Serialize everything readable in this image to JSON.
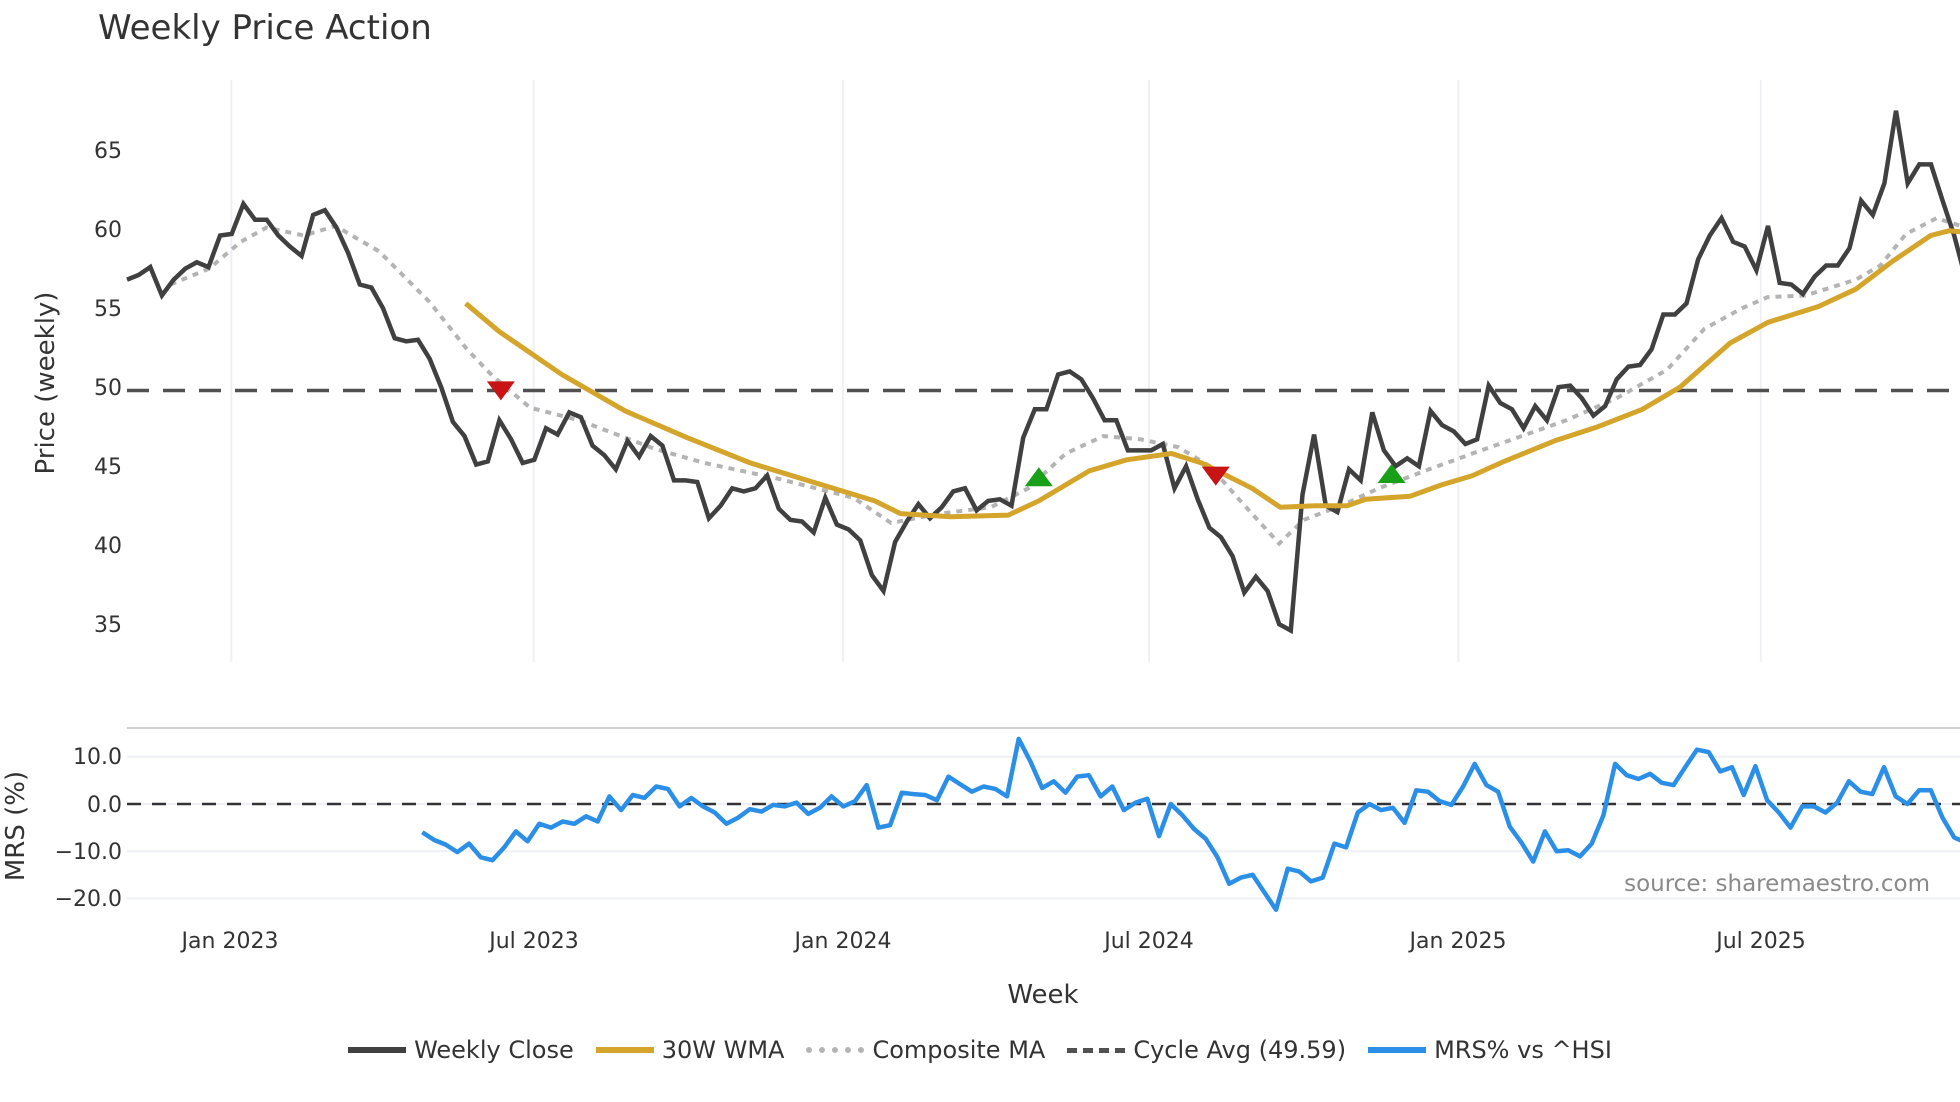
{
  "chart_data": [
    {
      "type": "line",
      "title": "Weekly Price Action",
      "xlabel": "Week",
      "ylabel": "Price (weekly)",
      "ylim": [
        32.5,
        69.2
      ],
      "yticks": [
        35,
        40,
        45,
        50,
        55,
        60,
        65
      ],
      "xticks": [
        {
          "label": "Jan 2023",
          "week_index": 8.9
        },
        {
          "label": "Jul 2023",
          "week_index": 34.7
        },
        {
          "label": "Jan 2024",
          "week_index": 61.1
        },
        {
          "label": "Jul 2024",
          "week_index": 87.2
        },
        {
          "label": "Jan 2025",
          "week_index": 113.6
        },
        {
          "label": "Jul 2025",
          "week_index": 139.4
        }
      ],
      "x_range_weeks": [
        0,
        156.4
      ],
      "grid": true,
      "series": [
        {
          "name": "Weekly Close",
          "color": "#404040",
          "start_index": 0,
          "end_index": 156.9,
          "values": [
            56.6,
            56.9,
            57.4,
            55.6,
            56.6,
            57.3,
            57.7,
            57.4,
            59.4,
            59.5,
            61.4,
            60.4,
            60.4,
            59.4,
            58.7,
            58.1,
            60.7,
            61.0,
            59.9,
            58.3,
            56.3,
            56.1,
            54.8,
            52.9,
            52.7,
            52.8,
            51.6,
            49.8,
            47.6,
            46.7,
            44.9,
            45.1,
            47.7,
            46.5,
            45.0,
            45.2,
            47.2,
            46.8,
            48.2,
            47.9,
            46.1,
            45.5,
            44.6,
            46.4,
            45.4,
            46.7,
            46.1,
            43.9,
            43.9,
            43.8,
            41.5,
            42.3,
            43.4,
            43.2,
            43.4,
            44.2,
            42.1,
            41.4,
            41.3,
            40.6,
            42.8,
            41.1,
            40.8,
            40.1,
            37.9,
            36.9,
            40.0,
            41.3,
            42.4,
            41.5,
            42.2,
            43.2,
            43.4,
            42.0,
            42.6,
            42.7,
            42.3,
            46.6,
            48.4,
            48.4,
            50.6,
            50.8,
            50.3,
            49.1,
            47.7,
            47.7,
            45.8,
            45.8,
            45.8,
            46.2,
            43.4,
            44.8,
            42.7,
            40.9,
            40.3,
            39.1,
            36.8,
            37.8,
            36.9,
            34.8,
            34.4,
            43.0,
            46.8,
            42.3,
            41.9,
            44.6,
            43.9,
            48.2,
            45.8,
            44.8,
            45.3,
            44.8,
            48.3,
            47.4,
            47.0,
            46.2,
            46.5,
            49.9,
            48.8,
            48.4,
            47.2,
            48.6,
            47.7,
            49.8,
            49.9,
            49.1,
            48.0,
            48.6,
            50.3,
            51.1,
            51.2,
            52.2,
            54.4,
            54.4,
            55.1,
            57.9,
            59.4,
            60.5,
            59.0,
            58.7,
            57.2,
            60.0,
            56.4,
            56.3,
            55.7,
            56.8,
            57.5,
            57.5,
            58.6,
            61.6,
            60.7,
            62.7,
            67.3,
            62.7,
            63.9,
            63.9,
            61.6,
            59.4,
            56.6
          ]
        },
        {
          "name": "30W WMA",
          "color": "#d4a52a",
          "points": [
            [
              28.9,
              55.1
            ],
            [
              31.8,
              53.3
            ],
            [
              37.1,
              50.6
            ],
            [
              42.5,
              48.3
            ],
            [
              47.8,
              46.6
            ],
            [
              53.2,
              45.0
            ],
            [
              58.5,
              43.8
            ],
            [
              63.8,
              42.6
            ],
            [
              66.0,
              41.8
            ],
            [
              70.3,
              41.6
            ],
            [
              75.2,
              41.7
            ],
            [
              77.8,
              42.6
            ],
            [
              82.1,
              44.5
            ],
            [
              85.3,
              45.2
            ],
            [
              89.1,
              45.6
            ],
            [
              91.7,
              45.0
            ],
            [
              96.0,
              43.4
            ],
            [
              98.4,
              42.2
            ],
            [
              101.4,
              42.3
            ],
            [
              104.1,
              42.3
            ],
            [
              105.7,
              42.7
            ],
            [
              109.5,
              42.9
            ],
            [
              112.1,
              43.6
            ],
            [
              114.8,
              44.2
            ],
            [
              117.5,
              45.1
            ],
            [
              121.8,
              46.4
            ],
            [
              125.5,
              47.3
            ],
            [
              129.3,
              48.4
            ],
            [
              132.5,
              49.8
            ],
            [
              136.8,
              52.6
            ],
            [
              140.0,
              53.9
            ],
            [
              144.3,
              54.9
            ],
            [
              147.5,
              56.0
            ],
            [
              150.7,
              57.8
            ],
            [
              153.9,
              59.4
            ],
            [
              155.5,
              59.7
            ],
            [
              156.9,
              59.6
            ]
          ]
        },
        {
          "name": "Composite MA",
          "color": "#b4b4b4",
          "points": [
            [
              3.7,
              56.3
            ],
            [
              7.0,
              57.3
            ],
            [
              9.7,
              59.0
            ],
            [
              11.9,
              59.9
            ],
            [
              15.1,
              59.4
            ],
            [
              17.8,
              60.0
            ],
            [
              21.5,
              58.4
            ],
            [
              25.8,
              55.2
            ],
            [
              29.0,
              52.2
            ],
            [
              31.2,
              50.5
            ],
            [
              34.4,
              48.5
            ],
            [
              38.6,
              47.7
            ],
            [
              45.0,
              45.9
            ],
            [
              49.3,
              45.0
            ],
            [
              55.6,
              44.0
            ],
            [
              62.0,
              42.8
            ],
            [
              65.2,
              41.2
            ],
            [
              69.4,
              41.8
            ],
            [
              73.7,
              42.2
            ],
            [
              76.9,
              43.4
            ],
            [
              80.1,
              45.6
            ],
            [
              83.3,
              46.7
            ],
            [
              86.5,
              46.5
            ],
            [
              89.7,
              46.0
            ],
            [
              92.4,
              44.8
            ],
            [
              95.0,
              42.6
            ],
            [
              98.3,
              39.9
            ],
            [
              100.4,
              41.4
            ],
            [
              103.6,
              42.3
            ],
            [
              106.8,
              43.4
            ],
            [
              111.1,
              44.6
            ],
            [
              114.8,
              45.6
            ],
            [
              118.6,
              46.6
            ],
            [
              122.8,
              47.7
            ],
            [
              127.1,
              49.1
            ],
            [
              131.4,
              50.9
            ],
            [
              134.6,
              53.5
            ],
            [
              137.8,
              54.8
            ],
            [
              140.0,
              55.5
            ],
            [
              143.2,
              55.6
            ],
            [
              147.5,
              56.6
            ],
            [
              149.6,
              57.5
            ],
            [
              151.8,
              59.5
            ],
            [
              154.4,
              60.5
            ],
            [
              156.9,
              59.9
            ]
          ]
        },
        {
          "name": "Cycle Avg (49.59)",
          "color": "#505050",
          "value": 49.59
        }
      ],
      "markers": [
        {
          "type": "sell",
          "shape": "triangle-down",
          "color": "#c81414",
          "week_index": 31.9,
          "value": 49.6
        },
        {
          "type": "buy",
          "shape": "triangle-up",
          "color": "#18a018",
          "week_index": 77.8,
          "value": 44.1
        },
        {
          "type": "sell",
          "shape": "triangle-down",
          "color": "#c81414",
          "week_index": 92.9,
          "value": 44.2
        },
        {
          "type": "buy",
          "shape": "triangle-up",
          "color": "#18a018",
          "week_index": 107.9,
          "value": 44.3
        }
      ]
    },
    {
      "type": "line",
      "title": "",
      "xlabel": "Week",
      "ylabel": "MRS (%)",
      "ylim": [
        -24,
        16.5
      ],
      "yticks": [
        10.0,
        0.0,
        -10.0,
        -20.0
      ],
      "ytick_labels": [
        "10.0",
        "0.0",
        "−10.0",
        "−20.0"
      ],
      "grid": true,
      "series": [
        {
          "name": "MRS% vs ^HSI",
          "color": "#2b8fe8",
          "start_index": 25.2,
          "end_index": 156.9,
          "values": [
            -6.0,
            -7.6,
            -8.6,
            -10.2,
            -8.4,
            -11.3,
            -11.9,
            -9.2,
            -5.8,
            -7.9,
            -4.2,
            -5.0,
            -3.7,
            -4.2,
            -2.6,
            -3.7,
            1.6,
            -1.3,
            1.9,
            1.3,
            3.7,
            3.2,
            -0.5,
            1.3,
            -0.5,
            -1.8,
            -4.2,
            -2.9,
            -1.1,
            -1.6,
            -0.2,
            -0.5,
            0.3,
            -2.1,
            -0.8,
            1.6,
            -0.5,
            0.6,
            4.0,
            -5.0,
            -4.5,
            2.4,
            2.1,
            1.9,
            0.8,
            5.8,
            4.2,
            2.6,
            3.7,
            3.2,
            1.6,
            13.8,
            9.0,
            3.4,
            4.8,
            2.4,
            5.8,
            6.1,
            1.6,
            3.7,
            -1.3,
            0.3,
            1.1,
            -6.8,
            0.0,
            -2.4,
            -5.3,
            -7.4,
            -11.3,
            -16.9,
            -15.6,
            -15.0,
            -18.7,
            -22.4,
            -13.7,
            -14.3,
            -16.4,
            -15.6,
            -8.4,
            -9.2,
            -1.8,
            0.0,
            -1.3,
            -0.8,
            -4.0,
            2.9,
            2.6,
            0.6,
            -0.2,
            3.7,
            8.5,
            4.0,
            2.6,
            -4.8,
            -8.2,
            -12.2,
            -5.8,
            -10.0,
            -9.8,
            -11.1,
            -8.4,
            -2.4,
            8.5,
            6.1,
            5.3,
            6.4,
            4.5,
            4.0,
            7.8,
            11.5,
            11.0,
            6.9,
            7.8,
            1.9,
            8.0,
            0.8,
            -1.8,
            -5.0,
            -0.5,
            -0.5,
            -1.8,
            0.3,
            4.8,
            2.6,
            2.1,
            7.8,
            1.6,
            0.0,
            2.9,
            2.9,
            -2.9,
            -7.1,
            -8.2
          ]
        },
        {
          "name": "zero line",
          "color": "#333333",
          "value": 0
        }
      ],
      "annotations": [
        {
          "text": "source: sharemaestro.com"
        }
      ]
    }
  ],
  "header": {
    "title": "Weekly Price Action"
  },
  "axes": {
    "price_ylabel": "Price (weekly)",
    "mrs_ylabel": "MRS (%)",
    "xlabel": "Week",
    "price_ticks": [
      "35",
      "40",
      "45",
      "50",
      "55",
      "60",
      "65"
    ],
    "mrs_ticks": [
      "10.0",
      "0.0",
      "−10.0",
      "−20.0"
    ],
    "x_ticks": [
      "Jan 2023",
      "Jul 2023",
      "Jan 2024",
      "Jul 2024",
      "Jan 2025",
      "Jul 2025"
    ]
  },
  "watermark": {
    "text": "source: sharemaestro.com"
  },
  "legend": {
    "items": [
      {
        "label": "Weekly Close",
        "color": "#404040",
        "style": "solid"
      },
      {
        "label": "30W WMA",
        "color": "#d4a52a",
        "style": "solid"
      },
      {
        "label": "Composite MA",
        "color": "#b4b4b4",
        "style": "dotted"
      },
      {
        "label": "Cycle Avg (49.59)",
        "color": "#505050",
        "style": "dashed"
      },
      {
        "label": "MRS% vs ^HSI",
        "color": "#2b8fe8",
        "style": "solid"
      }
    ]
  }
}
